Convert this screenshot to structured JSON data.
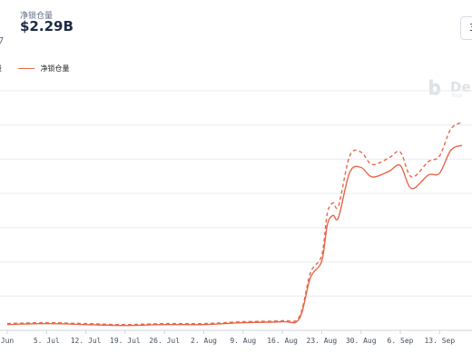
{
  "header": {
    "metric_label": "净锁仓量",
    "metric_value": "$2.29B",
    "range_button": "3",
    "left_tick": "7"
  },
  "legend": {
    "item_a": "量",
    "item_b": "净锁仓量",
    "color": "#e8674a"
  },
  "watermark": {
    "text": "De",
    "sub": "Your"
  },
  "chart_data": {
    "type": "line",
    "x_tick_labels": [
      "Jun",
      "5. Jul",
      "12. Jul",
      "19. Jul",
      "26. Jul",
      "2. Aug",
      "9. Aug",
      "16. Aug",
      "23. Aug",
      "30. Aug",
      "6. Sep",
      "13. Sep"
    ],
    "x": [
      "2021-06-28",
      "2021-07-05",
      "2021-07-12",
      "2021-07-19",
      "2021-07-26",
      "2021-08-02",
      "2021-08-09",
      "2021-08-16",
      "2021-08-19",
      "2021-08-21",
      "2021-08-23",
      "2021-08-24",
      "2021-08-25",
      "2021-08-26",
      "2021-08-28",
      "2021-08-30",
      "2021-09-01",
      "2021-09-04",
      "2021-09-06",
      "2021-09-08",
      "2021-09-11",
      "2021-09-13",
      "2021-09-15",
      "2021-09-17"
    ],
    "series": [
      {
        "name": "净锁仓量",
        "style": "solid",
        "color": "#e8674a",
        "values": [
          0.06,
          0.07,
          0.06,
          0.05,
          0.06,
          0.06,
          0.08,
          0.09,
          0.12,
          0.55,
          0.72,
          1.1,
          1.2,
          1.18,
          1.65,
          1.7,
          1.6,
          1.66,
          1.72,
          1.48,
          1.62,
          1.64,
          1.88,
          1.93
        ]
      },
      {
        "style": "dashed",
        "color": "#e8674a",
        "values": [
          0.07,
          0.08,
          0.07,
          0.06,
          0.07,
          0.07,
          0.09,
          0.1,
          0.14,
          0.6,
          0.78,
          1.22,
          1.33,
          1.3,
          1.82,
          1.86,
          1.73,
          1.8,
          1.86,
          1.6,
          1.76,
          1.82,
          2.1,
          2.17
        ]
      }
    ],
    "ylim": [
      0,
      2.5
    ],
    "grid": true,
    "legend_position": "top-left"
  }
}
